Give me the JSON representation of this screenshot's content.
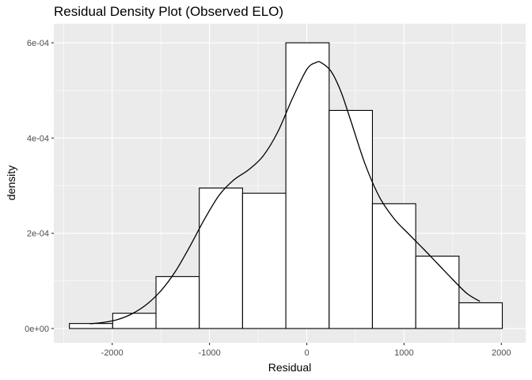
{
  "chart_data": {
    "type": "histogram",
    "title": "Residual Density Plot (Observed ELO)",
    "xlabel": "Residual",
    "ylabel": "density",
    "xlim": [
      -2600,
      2250
    ],
    "ylim": [
      -3e-05,
      0.00064
    ],
    "x_ticks": [
      {
        "value": -2000,
        "label": "-2000"
      },
      {
        "value": -1000,
        "label": "-1000"
      },
      {
        "value": 0,
        "label": "0"
      },
      {
        "value": 1000,
        "label": "1000"
      },
      {
        "value": 2000,
        "label": "2000"
      }
    ],
    "y_ticks": [
      {
        "value": 0,
        "label": "0e+00"
      },
      {
        "value": 0.0002,
        "label": "2e-04"
      },
      {
        "value": 0.0004,
        "label": "4e-04"
      },
      {
        "value": 0.0006,
        "label": "6e-04"
      }
    ],
    "bins": [
      {
        "x0": -2440,
        "x1": -1995,
        "density": 1.05e-05
      },
      {
        "x0": -1995,
        "x1": -1550,
        "density": 3.2e-05
      },
      {
        "x0": -1550,
        "x1": -1105,
        "density": 0.000109
      },
      {
        "x0": -1105,
        "x1": -660,
        "density": 0.000295
      },
      {
        "x0": -660,
        "x1": -215,
        "density": 0.000284
      },
      {
        "x0": -215,
        "x1": 230,
        "density": 0.0006
      },
      {
        "x0": 230,
        "x1": 675,
        "density": 0.000458
      },
      {
        "x0": 675,
        "x1": 1120,
        "density": 0.000262
      },
      {
        "x0": 1120,
        "x1": 1565,
        "density": 0.000152
      },
      {
        "x0": 1565,
        "x1": 2010,
        "density": 5.4e-05
      }
    ],
    "density_curve": {
      "x": [
        -2230,
        -2100,
        -1950,
        -1800,
        -1650,
        -1500,
        -1350,
        -1200,
        -1050,
        -900,
        -750,
        -600,
        -450,
        -300,
        -150,
        0,
        100,
        150,
        250,
        350,
        450,
        600,
        750,
        900,
        1050,
        1200,
        1350,
        1500,
        1650,
        1780
      ],
      "y": [
        1e-05,
        1.25e-05,
        1.85e-05,
        3.05e-05,
        5e-05,
        7.9e-05,
        0.00012,
        0.000173,
        0.00023,
        0.00028,
        0.000312,
        0.000333,
        0.000362,
        0.000412,
        0.000482,
        0.000544,
        0.000559,
        0.000558,
        0.00054,
        0.000498,
        0.000438,
        0.000345,
        0.000275,
        0.00023,
        0.000198,
        0.000167,
        0.000135,
        0.000103,
        7.3e-05,
        5.7e-05
      ]
    },
    "grid": true,
    "legend": "none"
  }
}
